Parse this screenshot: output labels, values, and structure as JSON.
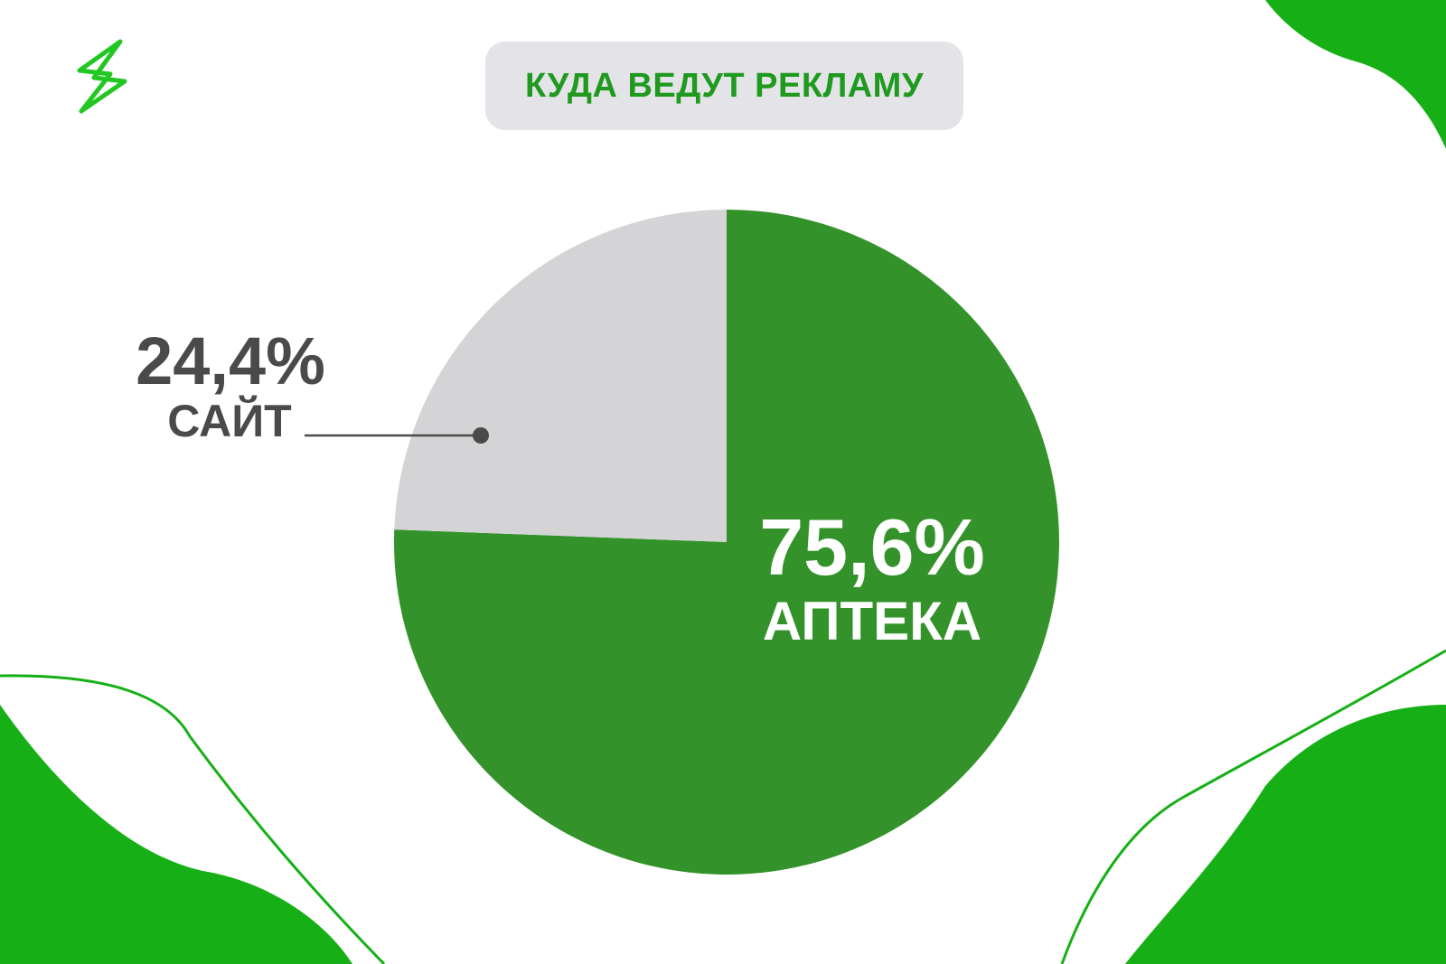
{
  "title": "КУДА ВЕДУТ РЕКЛАМУ",
  "colors": {
    "accent": "#33922a",
    "bright_green": "#16b016",
    "slice_gray": "#d4d4d6",
    "label_dark": "#4a4a4a",
    "pill_bg": "#e4e4e8",
    "title_green": "#1f9a1f"
  },
  "logo": {
    "icon": "lightning-bolt-icon"
  },
  "chart_data": {
    "type": "pie",
    "title": "КУДА ВЕДУТ РЕКЛАМУ",
    "slices": [
      {
        "label": "АПТЕКА",
        "value": 75.6,
        "display": "75,6%",
        "color": "#33922a"
      },
      {
        "label": "САЙТ",
        "value": 24.4,
        "display": "24,4%",
        "color": "#d4d4d6"
      }
    ],
    "legend": "none"
  }
}
